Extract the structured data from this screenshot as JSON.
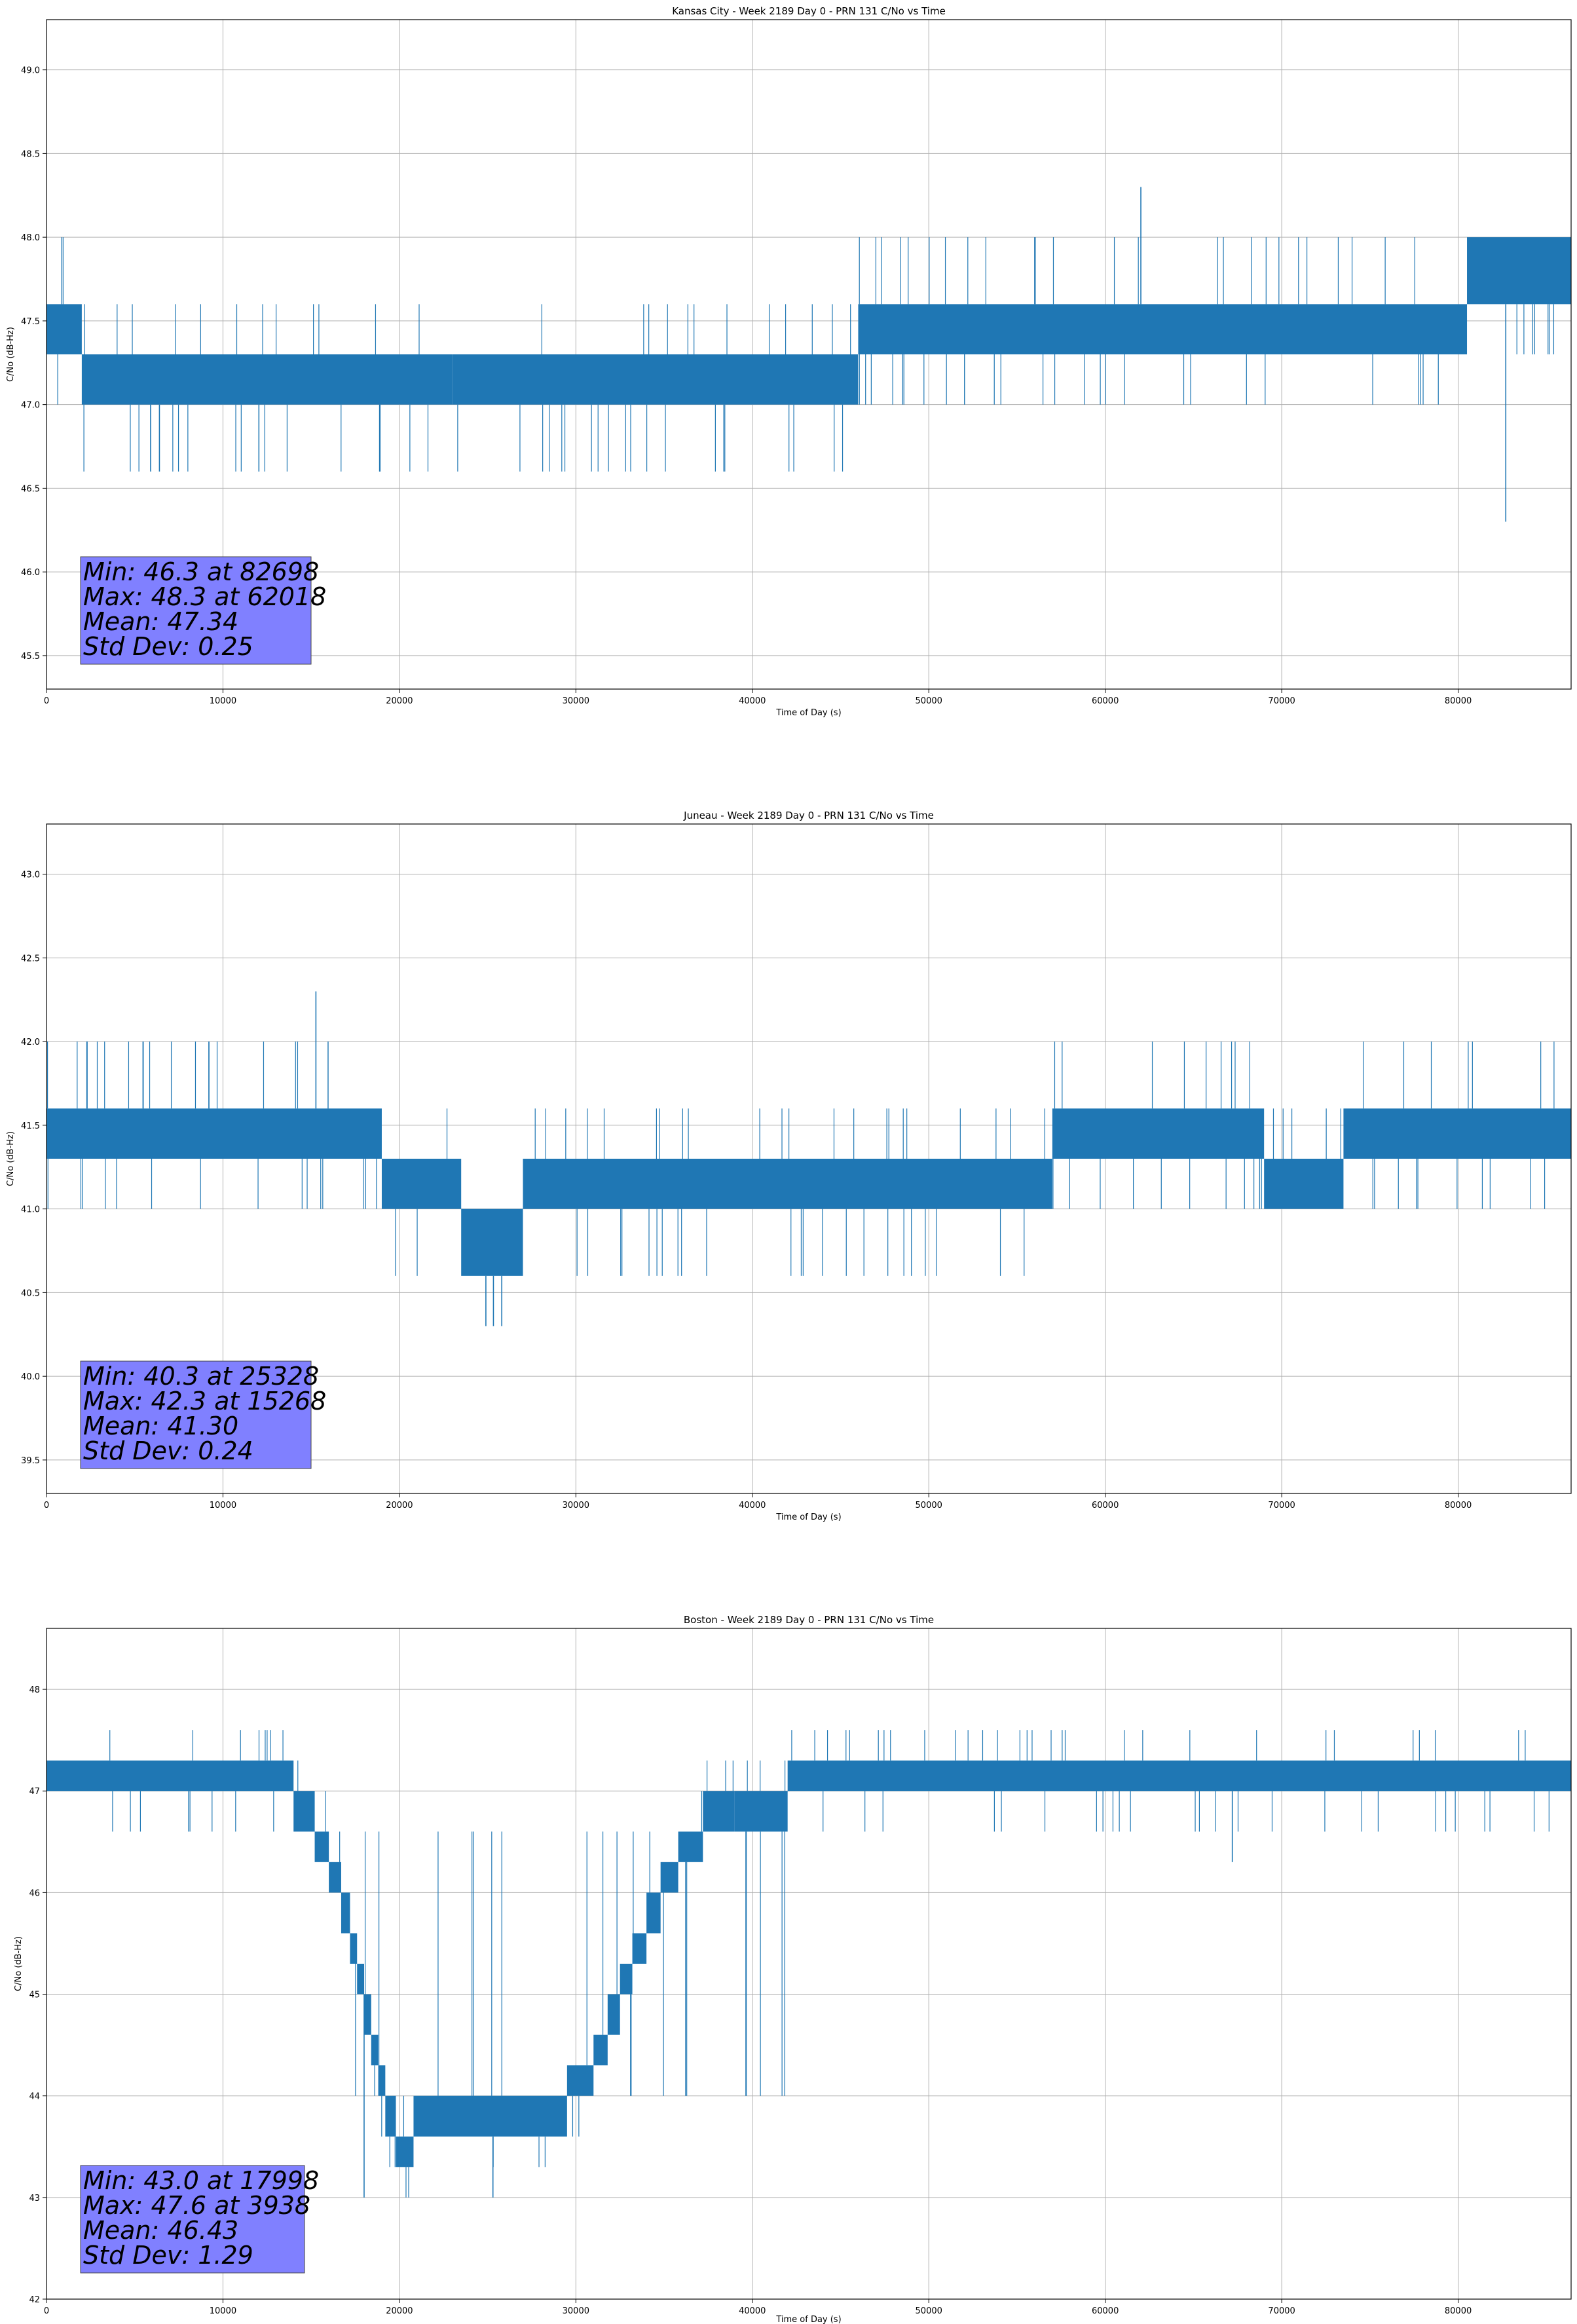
{
  "chart_data": [
    {
      "type": "line",
      "title": "Kansas City - Week 2189 Day 0 - PRN 131 C/No vs Time",
      "xlabel": "Time of Day (s)",
      "ylabel": "C/No (dB-Hz)",
      "xlim": [
        0,
        86400
      ],
      "ylim": [
        45.3,
        49.3
      ],
      "xticks": [
        0,
        10000,
        20000,
        30000,
        40000,
        50000,
        60000,
        70000,
        80000
      ],
      "yticks": [
        45.5,
        46.0,
        46.5,
        47.0,
        47.5,
        48.0,
        48.5,
        49.0
      ],
      "ytick_labels": [
        "45.5",
        "46.0",
        "46.5",
        "47.0",
        "47.5",
        "48.0",
        "48.5",
        "49.0"
      ],
      "grid": true,
      "line_color": "#1f77b4",
      "bands": [
        {
          "x": [
            0,
            2000
          ],
          "y": [
            47.3,
            47.6
          ]
        },
        {
          "x": [
            2000,
            23000
          ],
          "y": [
            47.0,
            47.3
          ]
        },
        {
          "x": [
            23000,
            46000
          ],
          "y": [
            47.0,
            47.3
          ]
        },
        {
          "x": [
            46000,
            80500
          ],
          "y": [
            47.3,
            47.6
          ]
        },
        {
          "x": [
            80500,
            86400
          ],
          "y": [
            47.6,
            48.0
          ]
        }
      ],
      "noise_levels": [
        46.6,
        47.0,
        47.3,
        47.6,
        48.0
      ],
      "spikes": [
        {
          "x": 62018,
          "y": 48.3
        },
        {
          "x": 82698,
          "y": 46.3
        },
        {
          "x": 18900,
          "y": 46.6
        },
        {
          "x": 5900,
          "y": 46.6
        },
        {
          "x": 6400,
          "y": 46.6
        }
      ],
      "stats": {
        "line1": "Min: 46.3 at 82698",
        "line2": "Max: 48.3 at 62018",
        "line3": "Mean: 47.34",
        "line4": "Std Dev: 0.25"
      }
    },
    {
      "type": "line",
      "title": "Juneau - Week 2189 Day 0 - PRN 131 C/No vs Time",
      "xlabel": "Time of Day (s)",
      "ylabel": "C/No (dB-Hz)",
      "xlim": [
        0,
        86400
      ],
      "ylim": [
        39.3,
        43.3
      ],
      "xticks": [
        0,
        10000,
        20000,
        30000,
        40000,
        50000,
        60000,
        70000,
        80000
      ],
      "yticks": [
        39.5,
        40.0,
        40.5,
        41.0,
        41.5,
        42.0,
        42.5,
        43.0
      ],
      "ytick_labels": [
        "39.5",
        "40.0",
        "40.5",
        "41.0",
        "41.5",
        "42.0",
        "42.5",
        "43.0"
      ],
      "grid": true,
      "line_color": "#1f77b4",
      "bands": [
        {
          "x": [
            0,
            19000
          ],
          "y": [
            41.3,
            41.6
          ]
        },
        {
          "x": [
            19000,
            23500
          ],
          "y": [
            41.0,
            41.3
          ]
        },
        {
          "x": [
            23500,
            27000
          ],
          "y": [
            40.6,
            41.0
          ]
        },
        {
          "x": [
            27000,
            57000
          ],
          "y": [
            41.0,
            41.3
          ]
        },
        {
          "x": [
            57000,
            69000
          ],
          "y": [
            41.3,
            41.6
          ]
        },
        {
          "x": [
            69000,
            73500
          ],
          "y": [
            41.0,
            41.3
          ]
        },
        {
          "x": [
            73500,
            86400
          ],
          "y": [
            41.3,
            41.6
          ]
        }
      ],
      "noise_levels": [
        40.6,
        41.0,
        41.3,
        41.6,
        42.0
      ],
      "spikes": [
        {
          "x": 15268,
          "y": 42.3
        },
        {
          "x": 25328,
          "y": 40.3
        },
        {
          "x": 25800,
          "y": 40.3
        },
        {
          "x": 24900,
          "y": 40.3
        }
      ],
      "stats": {
        "line1": "Min: 40.3 at 25328",
        "line2": "Max: 42.3 at 15268",
        "line3": "Mean: 41.30",
        "line4": "Std Dev: 0.24"
      }
    },
    {
      "type": "line",
      "title": "Boston - Week 2189 Day 0 - PRN 131 C/No vs Time",
      "xlabel": "Time of Day (s)",
      "ylabel": "C/No (dB-Hz)",
      "xlim": [
        0,
        86400
      ],
      "ylim": [
        42.0,
        48.6
      ],
      "xticks": [
        0,
        10000,
        20000,
        30000,
        40000,
        50000,
        60000,
        70000,
        80000
      ],
      "yticks": [
        42,
        43,
        44,
        45,
        46,
        47,
        48
      ],
      "ytick_labels": [
        "42",
        "43",
        "44",
        "45",
        "46",
        "47",
        "48"
      ],
      "grid": true,
      "line_color": "#1f77b4",
      "bands": [
        {
          "x": [
            0,
            14000
          ],
          "y": [
            47.0,
            47.3
          ]
        },
        {
          "x": [
            14000,
            15200
          ],
          "y": [
            46.6,
            47.0
          ]
        },
        {
          "x": [
            15200,
            16000
          ],
          "y": [
            46.3,
            46.6
          ]
        },
        {
          "x": [
            16000,
            16700
          ],
          "y": [
            46.0,
            46.3
          ]
        },
        {
          "x": [
            16700,
            17200
          ],
          "y": [
            45.6,
            46.0
          ]
        },
        {
          "x": [
            17200,
            17600
          ],
          "y": [
            45.3,
            45.6
          ]
        },
        {
          "x": [
            17600,
            18000
          ],
          "y": [
            45.0,
            45.3
          ]
        },
        {
          "x": [
            18000,
            18400
          ],
          "y": [
            44.6,
            45.0
          ]
        },
        {
          "x": [
            18400,
            18800
          ],
          "y": [
            44.3,
            44.6
          ]
        },
        {
          "x": [
            18800,
            19200
          ],
          "y": [
            44.0,
            44.3
          ]
        },
        {
          "x": [
            19200,
            19800
          ],
          "y": [
            43.6,
            44.0
          ]
        },
        {
          "x": [
            19800,
            20800
          ],
          "y": [
            43.3,
            43.6
          ]
        },
        {
          "x": [
            20800,
            29500
          ],
          "y": [
            43.6,
            44.0
          ]
        },
        {
          "x": [
            29500,
            31000
          ],
          "y": [
            44.0,
            44.3
          ]
        },
        {
          "x": [
            31000,
            31800
          ],
          "y": [
            44.3,
            44.6
          ]
        },
        {
          "x": [
            31800,
            32500
          ],
          "y": [
            44.6,
            45.0
          ]
        },
        {
          "x": [
            32500,
            33200
          ],
          "y": [
            45.0,
            45.3
          ]
        },
        {
          "x": [
            33200,
            34000
          ],
          "y": [
            45.3,
            45.6
          ]
        },
        {
          "x": [
            34000,
            34800
          ],
          "y": [
            45.6,
            46.0
          ]
        },
        {
          "x": [
            34800,
            35800
          ],
          "y": [
            46.0,
            46.3
          ]
        },
        {
          "x": [
            35800,
            37200
          ],
          "y": [
            46.3,
            46.6
          ]
        },
        {
          "x": [
            37200,
            39000
          ],
          "y": [
            46.6,
            47.0
          ]
        },
        {
          "x": [
            39000,
            42000
          ],
          "y": [
            46.6,
            47.0
          ]
        },
        {
          "x": [
            42000,
            86400
          ],
          "y": [
            47.0,
            47.3
          ]
        }
      ],
      "noise_levels": [
        43.0,
        43.3,
        43.6,
        44.0,
        46.6,
        47.0,
        47.3,
        47.6
      ],
      "spikes": [
        {
          "x": 17998,
          "y": 43.0
        },
        {
          "x": 25300,
          "y": 43.0
        },
        {
          "x": 67200,
          "y": 46.3
        }
      ],
      "stats": {
        "line1": "Min: 43.0 at 17998",
        "line2": "Max: 47.6 at 3938",
        "line3": "Mean: 46.43",
        "line4": "Std Dev: 1.29"
      }
    }
  ]
}
